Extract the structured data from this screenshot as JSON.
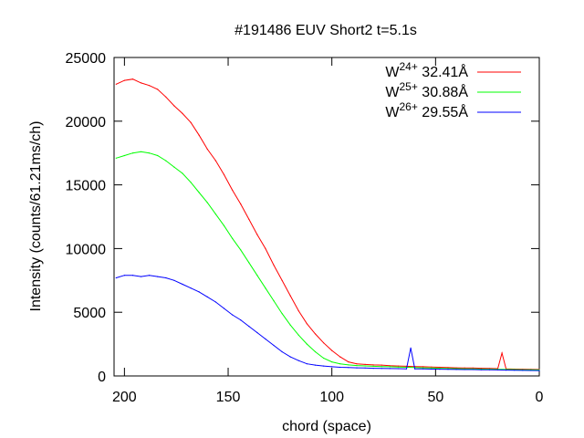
{
  "chart_data": {
    "type": "line",
    "title": "#191486 EUV Short2 t=5.1s",
    "xlabel": "chord (space)",
    "ylabel": "Intensity (counts/61.21ms/ch)",
    "xlim": [
      205,
      0
    ],
    "ylim": [
      0,
      25000
    ],
    "x_reversed": true,
    "grid": false,
    "legend_position": "top-right",
    "xticks": [
      200,
      150,
      100,
      50,
      0
    ],
    "yticks": [
      0,
      5000,
      10000,
      15000,
      20000,
      25000
    ],
    "colors": {
      "red": "#ff0000",
      "green": "#00ff00",
      "blue": "#0000ff"
    },
    "series": [
      {
        "name": "W24+ 32.41Å",
        "ion": "W",
        "charge": "24+",
        "wavelength": "32.41Å",
        "color": "#ff0000",
        "x": [
          204,
          200,
          196,
          192,
          188,
          184,
          180,
          176,
          172,
          168,
          164,
          160,
          156,
          152,
          148,
          144,
          140,
          136,
          132,
          128,
          124,
          120,
          116,
          112,
          108,
          104,
          100,
          96,
          92,
          88,
          84,
          80,
          76,
          72,
          68,
          64,
          60,
          56,
          52,
          48,
          44,
          40,
          36,
          32,
          28,
          24,
          20,
          18,
          16,
          12,
          8,
          4,
          0
        ],
        "y": [
          22900,
          23200,
          23300,
          23000,
          22800,
          22500,
          21900,
          21200,
          20600,
          19900,
          18900,
          17800,
          16900,
          15800,
          14600,
          13500,
          12300,
          11100,
          10000,
          8700,
          7500,
          6300,
          5100,
          4100,
          3300,
          2600,
          2000,
          1500,
          1100,
          950,
          900,
          870,
          850,
          800,
          780,
          760,
          740,
          720,
          700,
          680,
          660,
          640,
          630,
          620,
          600,
          590,
          570,
          1800,
          550,
          540,
          530,
          520,
          510
        ]
      },
      {
        "name": "W25+ 30.88Å",
        "ion": "W",
        "charge": "25+",
        "wavelength": "30.88Å",
        "color": "#00ff00",
        "x": [
          204,
          200,
          196,
          192,
          188,
          184,
          180,
          176,
          172,
          168,
          164,
          160,
          156,
          152,
          148,
          144,
          140,
          136,
          132,
          128,
          124,
          120,
          116,
          112,
          108,
          104,
          100,
          96,
          92,
          88,
          84,
          80,
          76,
          72,
          68,
          64,
          60,
          56,
          52,
          48,
          44,
          40,
          36,
          32,
          28,
          24,
          20,
          16,
          12,
          8,
          4,
          0
        ],
        "y": [
          17100,
          17300,
          17500,
          17600,
          17500,
          17300,
          16900,
          16400,
          15900,
          15200,
          14400,
          13600,
          12700,
          11800,
          10800,
          9900,
          8900,
          7900,
          6900,
          5900,
          4900,
          4000,
          3200,
          2500,
          1900,
          1400,
          1100,
          950,
          870,
          820,
          790,
          760,
          740,
          720,
          700,
          680,
          660,
          640,
          620,
          600,
          580,
          570,
          560,
          550,
          540,
          530,
          520,
          510,
          500,
          490,
          480,
          470
        ]
      },
      {
        "name": "W26+ 29.55Å",
        "ion": "W",
        "charge": "26+",
        "wavelength": "29.55Å",
        "color": "#0000ff",
        "x": [
          204,
          200,
          196,
          192,
          188,
          184,
          180,
          176,
          172,
          168,
          164,
          160,
          156,
          152,
          148,
          144,
          140,
          136,
          132,
          128,
          124,
          120,
          116,
          112,
          108,
          104,
          100,
          96,
          92,
          88,
          84,
          80,
          76,
          72,
          68,
          64,
          62,
          60,
          56,
          52,
          48,
          44,
          40,
          36,
          32,
          28,
          24,
          20,
          16,
          12,
          8,
          4,
          0
        ],
        "y": [
          7700,
          7900,
          7900,
          7800,
          7900,
          7800,
          7700,
          7500,
          7200,
          6900,
          6600,
          6200,
          5800,
          5300,
          4800,
          4400,
          3900,
          3400,
          2900,
          2400,
          1900,
          1500,
          1200,
          950,
          850,
          780,
          720,
          680,
          660,
          640,
          620,
          600,
          590,
          580,
          570,
          560,
          2200,
          560,
          550,
          540,
          530,
          520,
          510,
          500,
          500,
          490,
          480,
          470,
          460,
          450,
          440,
          430,
          420
        ]
      }
    ]
  }
}
